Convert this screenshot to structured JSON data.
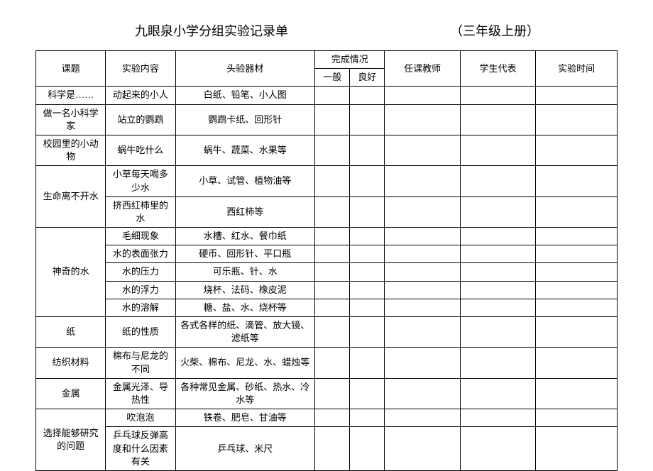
{
  "header": {
    "title_left": "九眼泉小学分组实验记录单",
    "title_right": "（三年级上册）"
  },
  "columns": {
    "topic": "课题",
    "content": "实验内容",
    "equipment": "头验器材",
    "completion": "完成情况",
    "status1": "一般",
    "status2": "良好",
    "teacher": "任课教师",
    "student": "学生代表",
    "time": "实验时间"
  },
  "rows": [
    {
      "topic": "科学是……",
      "content": "动起来的小人",
      "equipment": "白纸、铅笔、小人图",
      "rowspan": 1
    },
    {
      "topic": "做一名小科学家",
      "content": "站立的鹦鹉",
      "equipment": "鹦鹉卡纸、回形针",
      "rowspan": 1
    },
    {
      "topic": "校园里的小动物",
      "content": "蜗牛吃什么",
      "equipment": "蜗牛、蔬菜、水果等",
      "rowspan": 1
    },
    {
      "topic": "生命离不开水",
      "content": "小草每天喝多少水",
      "equipment": "小草、试管、植物油等",
      "rowspan": 2
    },
    {
      "topic": "",
      "content": "挤西红柿里的水",
      "equipment": "西红柿等",
      "rowspan": 0
    },
    {
      "topic": "神奇的水",
      "content": "毛细现象",
      "equipment": "水槽、红水、餐巾纸",
      "rowspan": 5
    },
    {
      "topic": "",
      "content": "水的表面张力",
      "equipment": "硬币、回形针、平口瓶",
      "rowspan": 0
    },
    {
      "topic": "",
      "content": "水的压力",
      "equipment": "可乐瓶、针、水",
      "rowspan": 0
    },
    {
      "topic": "",
      "content": "水的浮力",
      "equipment": "烧杯、法码、橡皮泥",
      "rowspan": 0
    },
    {
      "topic": "",
      "content": "水的溶解",
      "equipment": "糖、盐、水、烧杯等",
      "rowspan": 0
    },
    {
      "topic": "纸",
      "content": "纸的性质",
      "equipment": "各式各样的纸、滴管、放大镜、滤纸等",
      "rowspan": 1
    },
    {
      "topic": "纺织材料",
      "content": "棉布与尼龙的不同",
      "equipment": "火柴、棉布、尼龙、水、蜡烛等",
      "rowspan": 1
    },
    {
      "topic": "金属",
      "content": "金属光泽、导热性",
      "equipment": "各种常见金属、砂纸、热水、冷水等",
      "rowspan": 1
    },
    {
      "topic": "选择能够研究的问题",
      "content": "吹泡泡",
      "equipment": "铁卷、肥皂、甘油等",
      "rowspan": 2
    },
    {
      "topic": "",
      "content": "乒乓球反弹高度和什么因素有关",
      "equipment": "乒乓球、米尺",
      "rowspan": 0
    }
  ]
}
